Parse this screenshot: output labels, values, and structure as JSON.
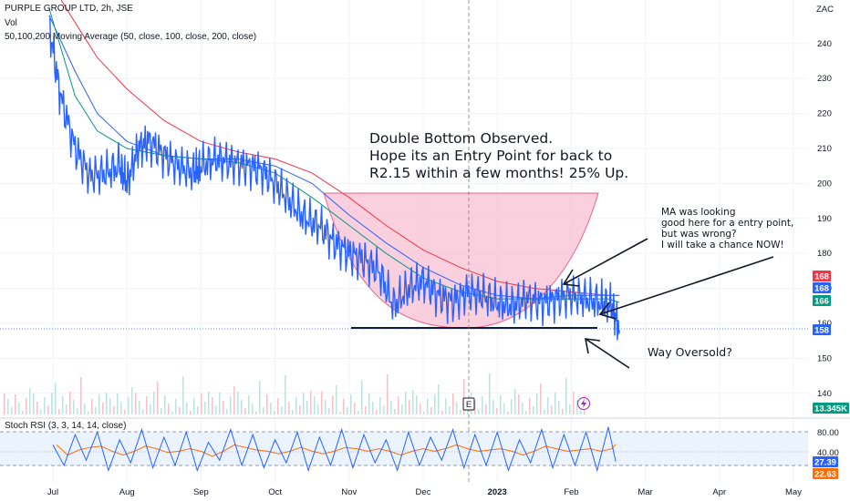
{
  "header": {
    "title": "PURPLE GROUP LTD, 2h, JSE",
    "vol_label": "Vol",
    "ma_label": "50,100,200 Moving Average (50, close, 100, close, 200, close)",
    "currency": "ZAC"
  },
  "stoch": {
    "label": "Stoch RSI (3, 3, 14, 14, close)",
    "upper_level": "80.00",
    "mid_level": "40.00",
    "k_value": "27.39",
    "d_value": "22.63"
  },
  "badges": {
    "ma_200": "168",
    "ma_100": "168",
    "ma_50": "166",
    "last_price": "158",
    "volume": "13.345K"
  },
  "annotations": {
    "main_note": [
      "Double Bottom Observed.",
      "Hope its an Entry Point for back to",
      "R2.15 within a few months! 25% Up."
    ],
    "ma_note": [
      "MA was looking",
      "good here for a entry point,",
      "but was wrong?",
      "I will take a chance NOW!"
    ],
    "oversold_note": "Way Oversold?",
    "event_marker": "E"
  },
  "colors": {
    "price": "#2962ff",
    "ma_200": "#f23645",
    "ma_100": "#2962ff",
    "ma_50": "#089981",
    "shape_fill": "#f8bbd0",
    "stoch_k": "#2962ff",
    "stoch_d": "#ff6d00",
    "stoch_band": "#e3f0fd"
  },
  "chart_data": {
    "type": "line",
    "title": "PURPLE GROUP LTD, 2h, JSE",
    "x_ticks": [
      "Jul",
      "Aug",
      "Sep",
      "Oct",
      "Nov",
      "Dec",
      "2023",
      "Feb",
      "Mar",
      "Apr",
      "May"
    ],
    "y_ticks": [
      140,
      150,
      160,
      170,
      180,
      190,
      200,
      210,
      220,
      230,
      240
    ],
    "y_range": [
      136,
      250
    ],
    "x_range": [
      0,
      10.7
    ],
    "series": [
      {
        "name": "Close",
        "x": [
          -0.05,
          0.1,
          0.3,
          0.5,
          0.7,
          0.9,
          1.0,
          1.15,
          1.3,
          1.5,
          1.7,
          1.9,
          2.0,
          2.2,
          2.4,
          2.6,
          2.8,
          3.0,
          3.2,
          3.4,
          3.6,
          3.8,
          4.0,
          4.2,
          4.4,
          4.6,
          4.8,
          5.0,
          5.2,
          5.4,
          5.6,
          5.8,
          6.0,
          6.2,
          6.4,
          6.6,
          6.8,
          7.0,
          7.2,
          7.4,
          7.55,
          7.65
        ],
        "values": [
          245,
          225,
          210,
          202,
          203,
          205,
          200,
          210,
          212,
          208,
          205,
          203,
          205,
          207,
          206,
          205,
          204,
          200,
          195,
          190,
          188,
          183,
          180,
          178,
          175,
          165,
          170,
          172,
          168,
          166,
          169,
          168,
          166,
          165,
          167,
          166,
          167,
          168,
          167,
          166,
          165,
          158
        ]
      },
      {
        "name": "MA 50",
        "x": [
          -0.05,
          0.3,
          0.6,
          1.0,
          1.5,
          2.0,
          2.5,
          3.0,
          3.5,
          4.0,
          4.5,
          5.0,
          5.5,
          6.0,
          6.5,
          7.0,
          7.5,
          7.65
        ],
        "values": [
          250,
          225,
          215,
          210,
          208,
          207,
          206,
          203,
          196,
          188,
          180,
          173,
          169,
          167,
          167,
          167,
          167,
          166
        ]
      },
      {
        "name": "MA 100",
        "x": [
          -0.05,
          0.3,
          0.6,
          1.0,
          1.5,
          2.0,
          2.5,
          3.0,
          3.5,
          4.0,
          4.5,
          5.0,
          5.5,
          6.0,
          6.5,
          7.0,
          7.5,
          7.65
        ],
        "values": [
          248,
          232,
          220,
          212,
          208,
          207,
          207,
          205,
          200,
          191,
          183,
          176,
          171,
          168,
          167,
          168,
          168,
          168
        ]
      },
      {
        "name": "MA 200",
        "x": [
          -0.05,
          0.3,
          0.6,
          1.0,
          1.5,
          2.0,
          2.5,
          3.0,
          3.5,
          4.0,
          4.5,
          5.0,
          5.5,
          6.0,
          6.5,
          7.0,
          7.5,
          7.65
        ],
        "values": [
          258,
          246,
          236,
          227,
          218,
          212,
          209,
          207,
          203,
          196,
          188,
          181,
          176,
          172,
          170,
          169,
          168,
          168
        ]
      }
    ],
    "stoch_rsi": {
      "levels": [
        20,
        40,
        80
      ],
      "k": [
        {
          "x": 0.0,
          "v": 60
        },
        {
          "x": 0.15,
          "v": 20
        },
        {
          "x": 0.3,
          "v": 80
        },
        {
          "x": 0.45,
          "v": 30
        },
        {
          "x": 0.6,
          "v": 85
        },
        {
          "x": 0.75,
          "v": 10
        },
        {
          "x": 0.9,
          "v": 70
        },
        {
          "x": 1.05,
          "v": 25
        },
        {
          "x": 1.2,
          "v": 90
        },
        {
          "x": 1.35,
          "v": 15
        },
        {
          "x": 1.5,
          "v": 75
        },
        {
          "x": 1.65,
          "v": 20
        },
        {
          "x": 1.8,
          "v": 85
        },
        {
          "x": 1.95,
          "v": 10
        },
        {
          "x": 2.1,
          "v": 65
        },
        {
          "x": 2.25,
          "v": 30
        },
        {
          "x": 2.4,
          "v": 90
        },
        {
          "x": 2.55,
          "v": 20
        },
        {
          "x": 2.7,
          "v": 80
        },
        {
          "x": 2.85,
          "v": 15
        },
        {
          "x": 3.0,
          "v": 70
        },
        {
          "x": 3.15,
          "v": 25
        },
        {
          "x": 3.3,
          "v": 85
        },
        {
          "x": 3.45,
          "v": 10
        },
        {
          "x": 3.6,
          "v": 75
        },
        {
          "x": 3.75,
          "v": 20
        },
        {
          "x": 3.9,
          "v": 90
        },
        {
          "x": 4.05,
          "v": 15
        },
        {
          "x": 4.2,
          "v": 80
        },
        {
          "x": 4.35,
          "v": 25
        },
        {
          "x": 4.5,
          "v": 70
        },
        {
          "x": 4.65,
          "v": 10
        },
        {
          "x": 4.8,
          "v": 85
        },
        {
          "x": 4.95,
          "v": 20
        },
        {
          "x": 5.1,
          "v": 75
        },
        {
          "x": 5.25,
          "v": 30
        },
        {
          "x": 5.4,
          "v": 90
        },
        {
          "x": 5.55,
          "v": 15
        },
        {
          "x": 5.7,
          "v": 80
        },
        {
          "x": 5.85,
          "v": 20
        },
        {
          "x": 6.0,
          "v": 85
        },
        {
          "x": 6.15,
          "v": 10
        },
        {
          "x": 6.3,
          "v": 70
        },
        {
          "x": 6.45,
          "v": 25
        },
        {
          "x": 6.6,
          "v": 90
        },
        {
          "x": 6.75,
          "v": 15
        },
        {
          "x": 6.9,
          "v": 80
        },
        {
          "x": 7.05,
          "v": 20
        },
        {
          "x": 7.2,
          "v": 85
        },
        {
          "x": 7.35,
          "v": 10
        },
        {
          "x": 7.5,
          "v": 95
        },
        {
          "x": 7.6,
          "v": 27.39
        }
      ],
      "d_offset": 0.05
    }
  }
}
